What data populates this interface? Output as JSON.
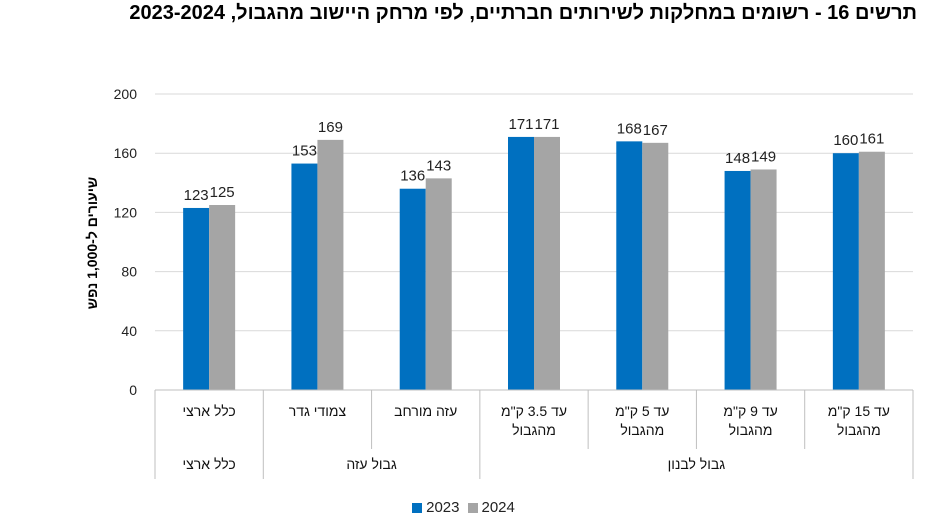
{
  "chart_data": {
    "type": "bar",
    "title": "תרשים 16 - רשומים במחלקות לשירותים חברתיים, לפי מרחק היישוב מהגבול, 2023-2024",
    "ylabel": "שיעורים ל-1,000 נפש",
    "ylim": [
      0,
      200
    ],
    "yticks": [
      0,
      40,
      80,
      120,
      160,
      200
    ],
    "categories": [
      [
        "כלל ארצי"
      ],
      [
        "צמודי גדר"
      ],
      [
        "עזה מורחב"
      ],
      [
        "עד 3.5 ק\"מ",
        "מהגבול"
      ],
      [
        "עד 5 ק\"מ",
        "מהגבול"
      ],
      [
        "עד 9 ק\"מ",
        "מהגבול"
      ],
      [
        "עד 15 ק\"מ",
        "מהגבול"
      ]
    ],
    "groups": [
      {
        "label": "כלל ארצי",
        "categories": [
          0
        ]
      },
      {
        "label": "גבול עזה",
        "categories": [
          1,
          2
        ]
      },
      {
        "label": "גבול לבנון",
        "categories": [
          3,
          4,
          5,
          6
        ]
      }
    ],
    "series": [
      {
        "name": "2023",
        "color": "#0070c0",
        "values": [
          123,
          153,
          136,
          171,
          168,
          148,
          160
        ]
      },
      {
        "name": "2024",
        "color": "#a5a5a5",
        "values": [
          125,
          169,
          143,
          171,
          167,
          149,
          161
        ]
      }
    ],
    "grid": true,
    "legend_position": "bottom"
  }
}
